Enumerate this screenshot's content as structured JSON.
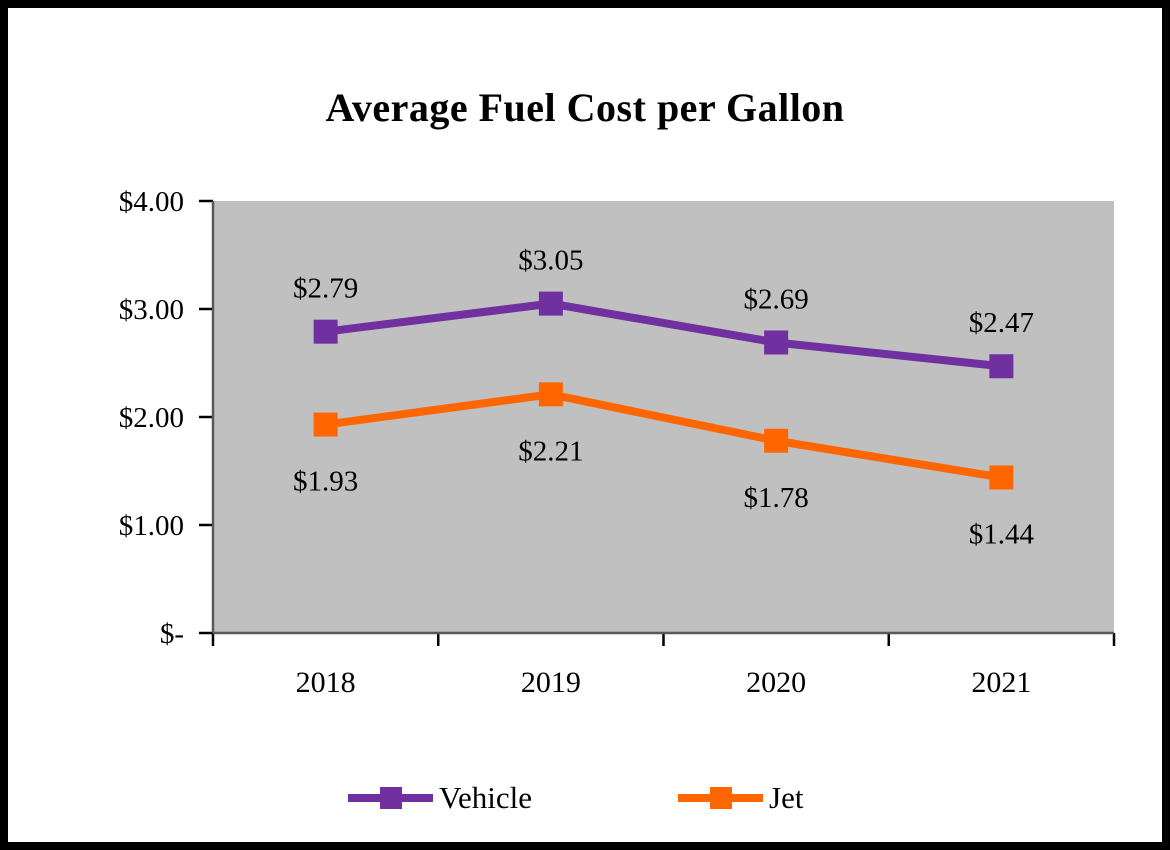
{
  "title": "Average Fuel Cost per Gallon",
  "chart_data": {
    "type": "line",
    "title": "Average Fuel Cost per Gallon",
    "categories": [
      "2018",
      "2019",
      "2020",
      "2021"
    ],
    "series": [
      {
        "name": "Vehicle",
        "color": "#7030A0",
        "values": [
          2.79,
          3.05,
          2.69,
          2.47
        ],
        "labels": [
          "$2.79",
          "$3.05",
          "$2.69",
          "$2.47"
        ],
        "label_position": "above"
      },
      {
        "name": "Jet",
        "color": "#FF6600",
        "values": [
          1.93,
          2.21,
          1.78,
          1.44
        ],
        "labels": [
          "$1.93",
          "$2.21",
          "$1.78",
          "$1.44"
        ],
        "label_position": "below"
      }
    ],
    "xlabel": "",
    "ylabel": "",
    "ylim": [
      0,
      4
    ],
    "y_ticks": [
      {
        "label": "$4.00",
        "value": 4
      },
      {
        "label": "$3.00",
        "value": 3
      },
      {
        "label": "$2.00",
        "value": 2
      },
      {
        "label": "$1.00",
        "value": 1
      },
      {
        "label": "$-",
        "value": 0
      }
    ],
    "grid": false,
    "legend_position": "bottom",
    "plot_background": "#C0C0C0",
    "axis_color": "#595959",
    "tick_color": "#000000",
    "text_color": "#000000"
  }
}
